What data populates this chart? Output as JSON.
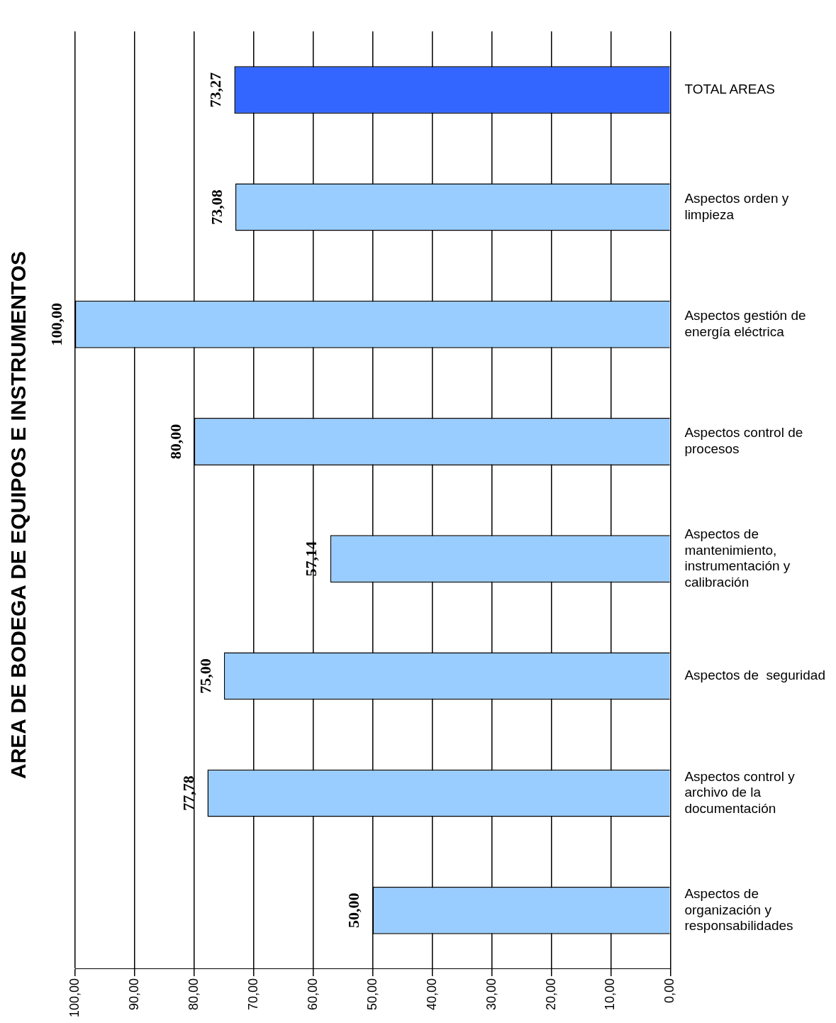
{
  "chart_data": {
    "type": "bar",
    "orientation": "horizontal",
    "title": "AREA DE BODEGA DE EQUIPOS E INSTRUMENTOS",
    "categories": [
      "TOTAL AREAS",
      "Aspectos orden y limpieza",
      "Aspectos gestión de energía eléctrica",
      "Aspectos control de procesos",
      "Aspectos de mantenimiento, instrumentación y calibración",
      "Aspectos de  seguridad",
      "Aspectos control y archivo de la documentación",
      "Aspectos de organización y responsabilidades"
    ],
    "values": [
      73.27,
      73.08,
      100,
      80,
      57.14,
      75,
      77.78,
      50
    ],
    "value_labels": [
      "73,27",
      "73,08",
      "100,00",
      "80,00",
      "57,14",
      "75,00",
      "77,78",
      "50,00"
    ],
    "colors": [
      "#3366ff",
      "#99ccff",
      "#99ccff",
      "#99ccff",
      "#99ccff",
      "#99ccff",
      "#99ccff",
      "#99ccff"
    ],
    "xlim": [
      100,
      0
    ],
    "xticks": [
      {
        "value": 100,
        "label": "100,00"
      },
      {
        "value": 90,
        "label": "90,00"
      },
      {
        "value": 80,
        "label": "80,00"
      },
      {
        "value": 70,
        "label": "70,00"
      },
      {
        "value": 60,
        "label": "60,00"
      },
      {
        "value": 50,
        "label": "50,00"
      },
      {
        "value": 40,
        "label": "40,00"
      },
      {
        "value": 30,
        "label": "30,00"
      },
      {
        "value": 20,
        "label": "20,00"
      },
      {
        "value": 10,
        "label": "10,00"
      },
      {
        "value": 0,
        "label": "0,00"
      }
    ],
    "grid": "x",
    "legend": false
  }
}
